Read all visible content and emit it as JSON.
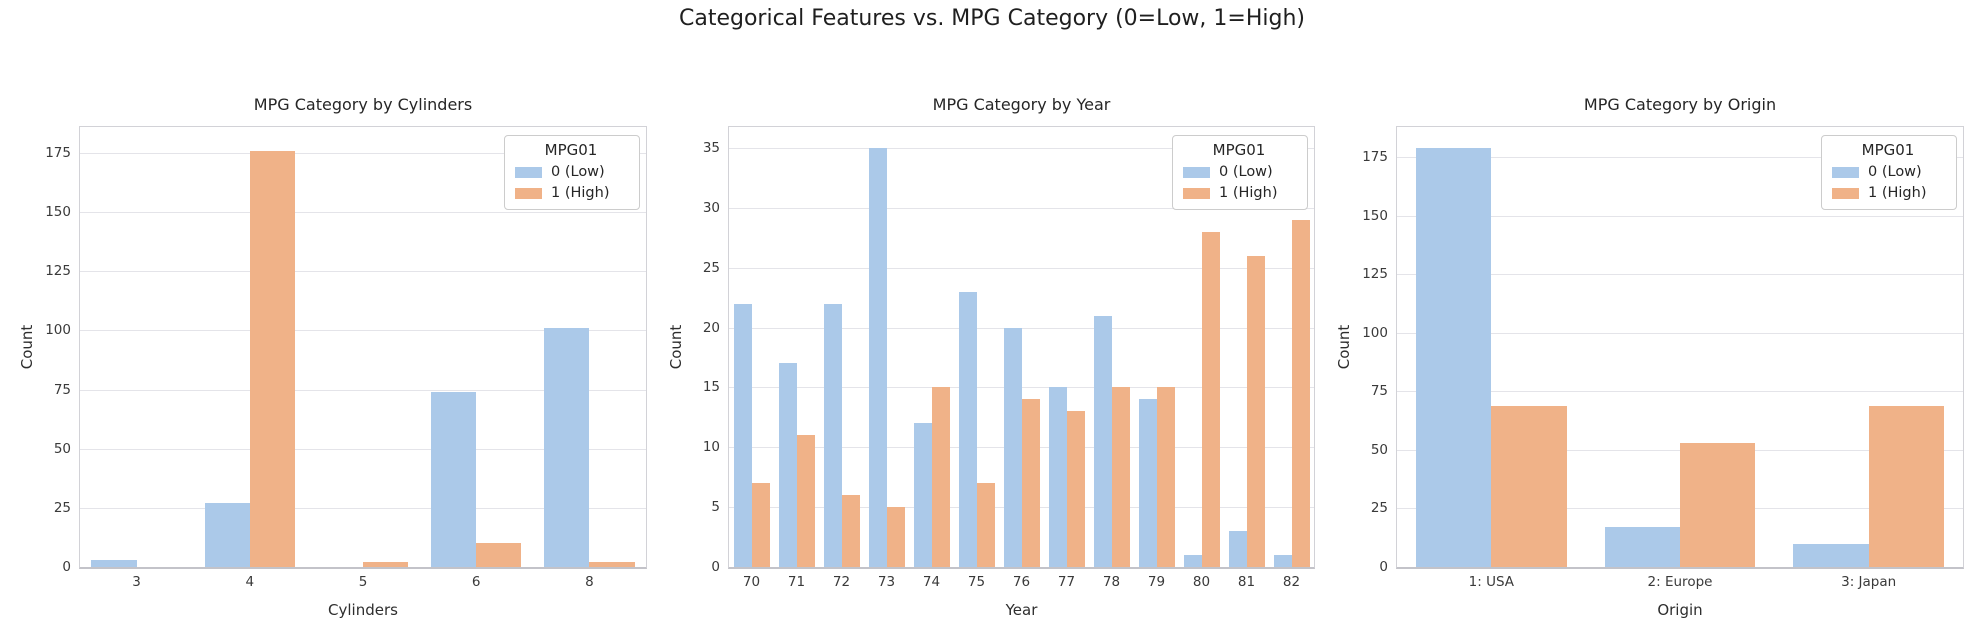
{
  "page": {
    "suptitle": "Categorical Features vs. MPG Category (0=Low, 1=High)"
  },
  "colors": {
    "low": "#abc9e9",
    "high": "#f0b288",
    "grid": "#e4e4e9",
    "spine": "#d2d2d7",
    "text": "#262626"
  },
  "legend": {
    "title": "MPG01",
    "entries": [
      {
        "key": "low",
        "label": "0 (Low)"
      },
      {
        "key": "high",
        "label": "1 (High)"
      }
    ]
  },
  "chart_data": [
    {
      "type": "bar",
      "title": "MPG Category by Cylinders",
      "xlabel": "Cylinders",
      "ylabel": "Count",
      "grid": true,
      "legend_position": "upper right",
      "categories": [
        "3",
        "4",
        "5",
        "6",
        "8"
      ],
      "series": [
        {
          "name": "0 (Low)",
          "key": "low",
          "values": [
            3,
            27,
            0,
            74,
            101
          ]
        },
        {
          "name": "1 (High)",
          "key": "high",
          "values": [
            0,
            176,
            2,
            10,
            2
          ]
        }
      ],
      "yticks": [
        0,
        25,
        50,
        75,
        100,
        125,
        150,
        175
      ],
      "ylim": [
        0,
        186
      ]
    },
    {
      "type": "bar",
      "title": "MPG Category by Year",
      "xlabel": "Year",
      "ylabel": "Count",
      "grid": true,
      "legend_position": "upper right",
      "categories": [
        "70",
        "71",
        "72",
        "73",
        "74",
        "75",
        "76",
        "77",
        "78",
        "79",
        "80",
        "81",
        "82"
      ],
      "series": [
        {
          "name": "0 (Low)",
          "key": "low",
          "values": [
            22,
            17,
            22,
            35,
            12,
            23,
            20,
            15,
            21,
            14,
            1,
            3,
            1
          ]
        },
        {
          "name": "1 (High)",
          "key": "high",
          "values": [
            7,
            11,
            6,
            5,
            15,
            7,
            14,
            13,
            15,
            15,
            28,
            26,
            29
          ]
        }
      ],
      "yticks": [
        0,
        5,
        10,
        15,
        20,
        25,
        30,
        35
      ],
      "ylim": [
        0,
        36.75
      ]
    },
    {
      "type": "bar",
      "title": "MPG Category by Origin",
      "xlabel": "Origin",
      "ylabel": "Count",
      "grid": true,
      "legend_position": "upper right",
      "categories": [
        "1: USA",
        "2: Europe",
        "3: Japan"
      ],
      "series": [
        {
          "name": "0 (Low)",
          "key": "low",
          "values": [
            179,
            17,
            10
          ]
        },
        {
          "name": "1 (High)",
          "key": "high",
          "values": [
            69,
            53,
            69
          ]
        }
      ],
      "yticks": [
        0,
        25,
        50,
        75,
        100,
        125,
        150,
        175
      ],
      "ylim": [
        0,
        188
      ]
    }
  ]
}
